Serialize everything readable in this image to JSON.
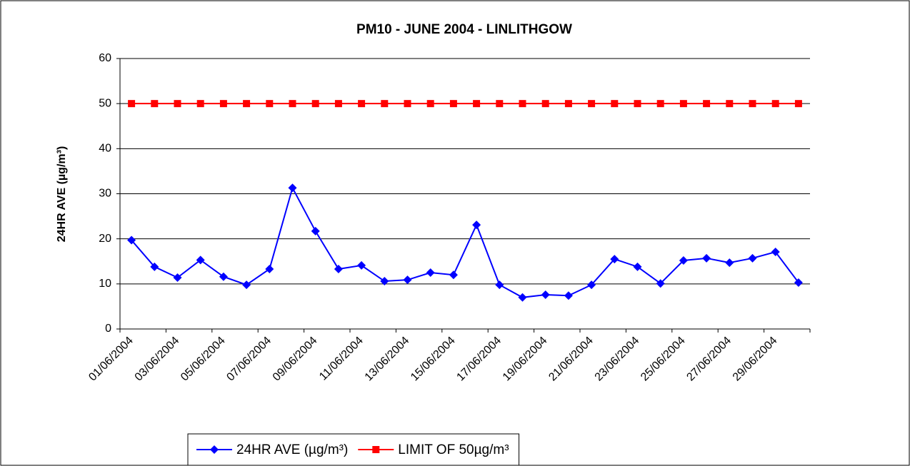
{
  "chart_data": {
    "type": "line",
    "title": "PM10 - JUNE 2004 - LINLITHGOW",
    "y_label": "24HR AVE (µg/m³)",
    "categories": [
      "01/06/2004",
      null,
      "03/06/2004",
      null,
      "05/06/2004",
      null,
      "07/06/2004",
      null,
      "09/06/2004",
      null,
      "11/06/2004",
      null,
      "13/06/2004",
      null,
      "15/06/2004",
      null,
      "17/06/2004",
      null,
      "19/06/2004",
      null,
      "21/06/2004",
      null,
      "23/06/2004",
      null,
      "25/06/2004",
      null,
      "27/06/2004",
      null,
      "29/06/2004",
      null
    ],
    "series": [
      {
        "name": "24HR AVE (µg/m³)",
        "color": "#0000ff",
        "marker": "diamond",
        "values": [
          19.7,
          13.8,
          11.4,
          15.3,
          11.6,
          9.8,
          13.3,
          31.3,
          21.7,
          13.3,
          14.1,
          10.6,
          10.9,
          12.5,
          12.0,
          23.1,
          9.8,
          7.0,
          7.6,
          7.4,
          9.8,
          15.5,
          13.8,
          10.1,
          15.2,
          15.7,
          14.7,
          15.7,
          17.1,
          10.3
        ]
      },
      {
        "name": "LIMIT OF 50µg/m³",
        "color": "#ff0000",
        "marker": "square",
        "values": [
          50,
          50,
          50,
          50,
          50,
          50,
          50,
          50,
          50,
          50,
          50,
          50,
          50,
          50,
          50,
          50,
          50,
          50,
          50,
          50,
          50,
          50,
          50,
          50,
          50,
          50,
          50,
          50,
          50,
          50
        ]
      }
    ],
    "ylim": [
      0,
      60
    ],
    "yticks": [
      0,
      10,
      20,
      30,
      40,
      50,
      60
    ],
    "grid": true,
    "legend": "bottom"
  }
}
